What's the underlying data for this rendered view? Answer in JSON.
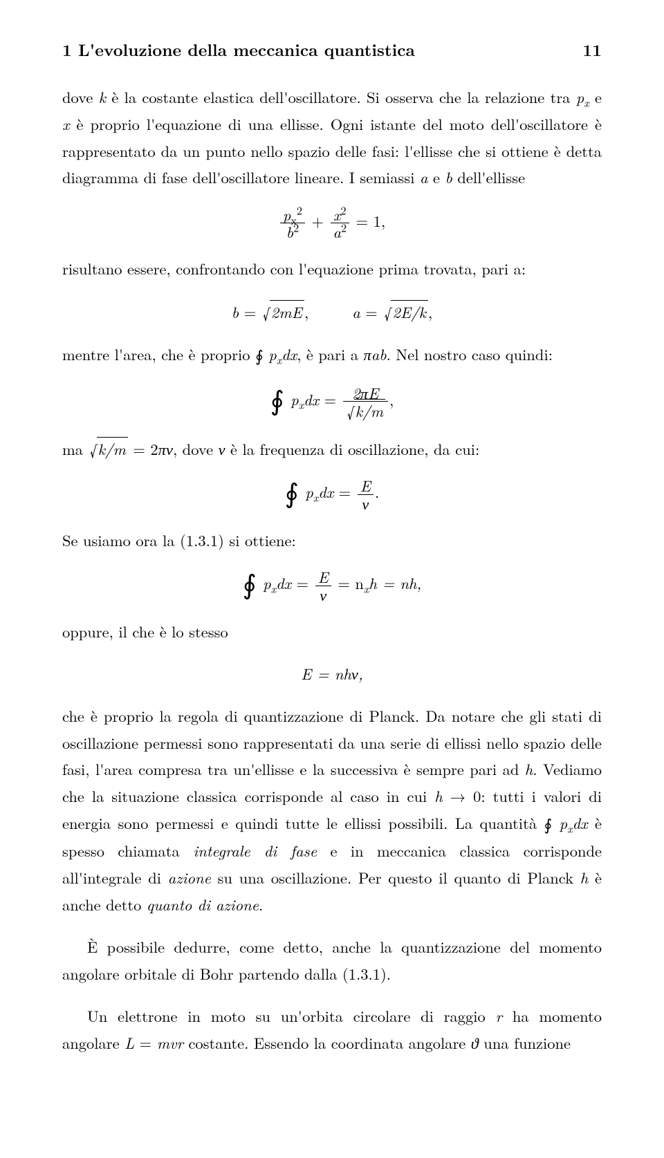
{
  "header": {
    "chapter_title": "1 L'evoluzione della meccanica quantistica",
    "page_number": "11"
  },
  "body": {
    "p1a": "dove ",
    "p1_k": "k",
    "p1b": " è la costante elastica dell'oscillatore. Si osserva che la relazione tra ",
    "p1_px": "p",
    "p1_pxsub": "x",
    "p1c": " e ",
    "p1_x": "x",
    "p1d": " è proprio l'equazione di una ellisse. Ogni istante del moto dell'oscillatore è rappresentato da un punto nello spazio delle fasi: l'ellisse che si ottiene è detta diagramma di fase dell'oscillatore lineare. I semiassi ",
    "p1_a": "a",
    "p1e": " e ",
    "p1_b": "b",
    "p1f": " dell'ellisse",
    "eq1_num1": "p",
    "eq1_num1_sub": "x",
    "eq1_num1_sup": "2",
    "eq1_den1": "b",
    "eq1_den1_sup": "2",
    "eq1_plus": " + ",
    "eq1_num2": "x",
    "eq1_num2_sup": "2",
    "eq1_den2": "a",
    "eq1_den2_sup": "2",
    "eq1_eq": " = 1,",
    "p2": "risultano essere, confrontando con l'equazione prima trovata, pari a:",
    "eq2_b": "b",
    "eq2_eq1": " = ",
    "eq2_rad1": "2mE",
    "eq2_comma": ",",
    "eq2_a": "a",
    "eq2_eq2": " = ",
    "eq2_rad2": "2E/k",
    "eq2_comma2": ",",
    "p3a": "mentre l'area, che è proprio ",
    "p3_int": "∮",
    "p3_px": "p",
    "p3_px_sub": "x",
    "p3_dx": "dx",
    "p3b": ", è pari a ",
    "p3_piab": "πab",
    "p3c": ". Nel nostro caso quindi:",
    "eq3_int": "∮",
    "eq3_px": "p",
    "eq3_px_sub": "x",
    "eq3_dx": "dx",
    "eq3_eq": " = ",
    "eq3_num": "2πE",
    "eq3_den_rad": "k/m",
    "eq3_comma": ",",
    "p4a": "ma ",
    "p4_rad": "k/m",
    "p4b": " = 2",
    "p4_pinu": "πν",
    "p4c": ", dove ",
    "p4_nu": "ν",
    "p4d": " è la frequenza di oscillazione, da cui:",
    "eq4_int": "∮",
    "eq4_px": "p",
    "eq4_px_sub": "x",
    "eq4_dx": "dx",
    "eq4_eq": " = ",
    "eq4_num": "E",
    "eq4_den": "ν",
    "eq4_dot": ".",
    "p5": "Se usiamo ora la (1.3.1) si ottiene:",
    "eq5_int": "∮",
    "eq5_px": "p",
    "eq5_px_sub": "x",
    "eq5_dx": "dx",
    "eq5_eq": " = ",
    "eq5_num": "E",
    "eq5_den": "ν",
    "eq5_rest": " = n",
    "eq5_nx_sub": "x",
    "eq5_rest2": "h = nh,",
    "p6": "oppure, il che è lo stesso",
    "eq6": "E = nhν,",
    "p7a": "che è proprio la regola di quantizzazione di Planck. Da notare che gli stati di oscillazione permessi sono rappresentati da una serie di ellissi nello spazio delle fasi, l'area compresa tra un'ellisse e la successiva è sempre pari ad ",
    "p7_h": "h",
    "p7b": ". Vediamo che la situazione classica corrisponde al caso in cui ",
    "p7_h2": "h",
    "p7_to": " → 0: tutti i valori di energia sono permessi e quindi tutte le ellissi possibili. La quantità ",
    "p7_int": "∮",
    "p7_px": "p",
    "p7_px_sub": "x",
    "p7_dx": "dx",
    "p7c": " è spesso chiamata ",
    "p7_phrase1": "integrale di fase",
    "p7d": " e in meccanica classica corrisponde all'integrale di ",
    "p7_phrase2": "azione",
    "p7e": " su una oscillazione. Per questo il quanto di Planck ",
    "p7_h3": "h",
    "p7f": " è anche detto ",
    "p7_phrase3": "quanto di azione",
    "p7g": ".",
    "p8": "È possibile dedurre, come detto, anche la quantizzazione del momento angolare orbitale di Bohr partendo dalla (1.3.1).",
    "p9a": "Un elettrone in moto su un'orbita circolare di raggio ",
    "p9_r": "r",
    "p9b": " ha momento angolare ",
    "p9_L": "L",
    "p9c": " = ",
    "p9_mvr": "mvr",
    "p9d": " costante. Essendo la coordinata angolare ",
    "p9_theta": "ϑ",
    "p9e": " una funzione"
  }
}
